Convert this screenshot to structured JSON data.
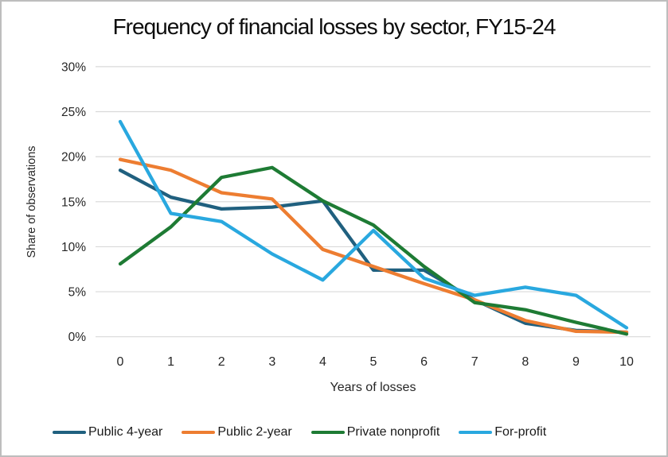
{
  "title": "Frequency of financial losses by sector, FY15-24",
  "colors": {
    "background": "#FFFFFF",
    "frame_border": "#BDBDBD",
    "gridline": "#D9D9D9",
    "tick_text": "#262626",
    "title_text": "#0D0D0D"
  },
  "chart_data": {
    "type": "line",
    "title": "Frequency of financial losses by sector, FY15-24",
    "xlabel": "Years of losses",
    "ylabel": "Share of observations",
    "x": [
      0,
      1,
      2,
      3,
      4,
      5,
      6,
      7,
      8,
      9,
      10
    ],
    "x_tick_labels": [
      "0",
      "1",
      "2",
      "3",
      "4",
      "5",
      "6",
      "7",
      "8",
      "9",
      "10"
    ],
    "y_ticks": [
      0,
      5,
      10,
      15,
      20,
      25,
      30
    ],
    "y_tick_labels": [
      "0%",
      "5%",
      "10%",
      "15%",
      "20%",
      "25%",
      "30%"
    ],
    "ylim": [
      0,
      30
    ],
    "grid": "horizontal",
    "legend_position": "bottom",
    "series": [
      {
        "name": "Public 4-year",
        "color": "#20607F",
        "values": [
          18.5,
          15.5,
          14.2,
          14.4,
          15.1,
          7.4,
          7.4,
          4.1,
          1.5,
          0.7,
          0.5
        ]
      },
      {
        "name": "Public 2-year",
        "color": "#ED7D31",
        "values": [
          19.7,
          18.5,
          16.0,
          15.3,
          9.7,
          7.8,
          5.9,
          4.1,
          1.8,
          0.6,
          0.5
        ]
      },
      {
        "name": "Private nonprofit",
        "color": "#1E7B34",
        "values": [
          8.1,
          12.2,
          17.7,
          18.8,
          15.1,
          12.4,
          7.8,
          3.8,
          3.0,
          1.6,
          0.3
        ]
      },
      {
        "name": "For-profit",
        "color": "#29A8DF",
        "values": [
          23.9,
          13.7,
          12.8,
          9.2,
          6.3,
          11.8,
          6.5,
          4.6,
          5.5,
          4.6,
          1.0
        ]
      }
    ]
  }
}
